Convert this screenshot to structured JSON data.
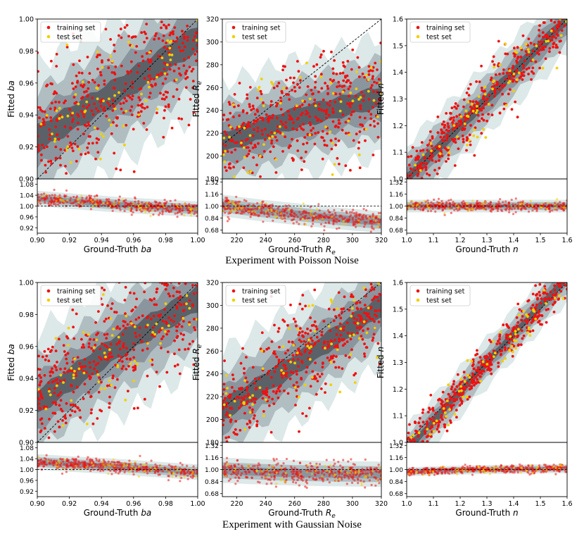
{
  "colors": {
    "training": "#ee1111",
    "test": "#f2cf00",
    "band_outer": "#dde8e8",
    "band_mid": "#b0bec2",
    "band_inner": "#8b959e",
    "band_core": "#5c6168",
    "diagonal": "#000000"
  },
  "legend": {
    "training_label": "training set",
    "test_label": "test set"
  },
  "experiments": [
    {
      "caption": "Experiment with Poisson Noise",
      "noise": "poisson"
    },
    {
      "caption": "Experiment with Gaussian Noise",
      "noise": "gaussian"
    }
  ],
  "chart_data": [
    {
      "id": "poisson-ba",
      "type": "scatter",
      "experiment": "Experiment with Poisson Noise",
      "xlabel": "Ground-Truth ba",
      "ylabel": "Fitted ba",
      "xlim": [
        0.9,
        1.0
      ],
      "ylim": [
        0.9,
        1.0
      ],
      "ratio_ylim": [
        0.9,
        1.1
      ],
      "xticks": [
        "0.90",
        "0.92",
        "0.94",
        "0.96",
        "0.98",
        "1.00"
      ],
      "yticks": [
        "0.90",
        "0.92",
        "0.94",
        "0.96",
        "0.98",
        "1.00"
      ],
      "ratio_yticks": [
        "0.92",
        "0.96",
        "1.00",
        "1.04",
        "1.08"
      ],
      "series": [
        {
          "name": "training set"
        },
        {
          "name": "test set"
        }
      ],
      "trend": [
        [
          0.9,
          0.925
        ],
        [
          0.95,
          0.955
        ],
        [
          1.0,
          0.988
        ]
      ],
      "scatter_sd": 0.018,
      "ratio_sd": 0.012
    },
    {
      "id": "poisson-re",
      "type": "scatter",
      "experiment": "Experiment with Poisson Noise",
      "xlabel": "Ground-Truth Re",
      "ylabel": "Fitted Re",
      "xlim": [
        210,
        320
      ],
      "ylim": [
        180,
        320
      ],
      "ratio_ylim": [
        0.64,
        1.36
      ],
      "xticks": [
        "220",
        "240",
        "260",
        "280",
        "300",
        "320"
      ],
      "yticks": [
        "180",
        "200",
        "220",
        "240",
        "260",
        "280",
        "300",
        "320"
      ],
      "ratio_yticks": [
        "0.68",
        "0.84",
        "1.00",
        "1.16",
        "1.32"
      ],
      "series": [
        {
          "name": "training set"
        },
        {
          "name": "test set"
        }
      ],
      "trend": [
        [
          210,
          212
        ],
        [
          260,
          233
        ],
        [
          320,
          252
        ]
      ],
      "scatter_sd": 20,
      "ratio_sd": 0.06
    },
    {
      "id": "poisson-n",
      "type": "scatter",
      "experiment": "Experiment with Poisson Noise",
      "xlabel": "Ground-Truth n",
      "ylabel": "Fitted n",
      "xlim": [
        1.0,
        1.6
      ],
      "ylim": [
        1.0,
        1.6
      ],
      "ratio_ylim": [
        0.64,
        1.36
      ],
      "xticks": [
        "1.0",
        "1.1",
        "1.2",
        "1.3",
        "1.4",
        "1.5",
        "1.6"
      ],
      "yticks": [
        "1.0",
        "1.1",
        "1.2",
        "1.3",
        "1.4",
        "1.5",
        "1.6"
      ],
      "ratio_yticks": [
        "0.68",
        "0.84",
        "1.00",
        "1.16",
        "1.32"
      ],
      "series": [
        {
          "name": "training set"
        },
        {
          "name": "test set"
        }
      ],
      "trend": [
        [
          1.0,
          1.0
        ],
        [
          1.3,
          1.3
        ],
        [
          1.6,
          1.6
        ]
      ],
      "scatter_sd": 0.05,
      "ratio_sd": 0.035
    },
    {
      "id": "gaussian-ba",
      "type": "scatter",
      "experiment": "Experiment with Gaussian Noise",
      "xlabel": "Ground-Truth ba",
      "ylabel": "Fitted ba",
      "xlim": [
        0.9,
        1.0
      ],
      "ylim": [
        0.9,
        1.0
      ],
      "ratio_ylim": [
        0.9,
        1.1
      ],
      "xticks": [
        "0.90",
        "0.92",
        "0.94",
        "0.96",
        "0.98",
        "1.00"
      ],
      "yticks": [
        "0.90",
        "0.92",
        "0.94",
        "0.96",
        "0.98",
        "1.00"
      ],
      "ratio_yticks": [
        "0.92",
        "0.96",
        "1.00",
        "1.04",
        "1.08"
      ],
      "series": [
        {
          "name": "training set"
        },
        {
          "name": "test set"
        }
      ],
      "trend": [
        [
          0.9,
          0.925
        ],
        [
          0.95,
          0.96
        ],
        [
          1.0,
          0.99
        ]
      ],
      "scatter_sd": 0.017,
      "ratio_sd": 0.012
    },
    {
      "id": "gaussian-re",
      "type": "scatter",
      "experiment": "Experiment with Gaussian Noise",
      "xlabel": "Ground-Truth Re",
      "ylabel": "Fitted Re",
      "xlim": [
        210,
        320
      ],
      "ylim": [
        180,
        320
      ],
      "ratio_ylim": [
        0.64,
        1.36
      ],
      "xticks": [
        "220",
        "240",
        "260",
        "280",
        "300",
        "320"
      ],
      "yticks": [
        "180",
        "200",
        "220",
        "240",
        "260",
        "280",
        "300",
        "320"
      ],
      "ratio_yticks": [
        "0.68",
        "0.84",
        "1.00",
        "1.16",
        "1.32"
      ],
      "series": [
        {
          "name": "training set"
        },
        {
          "name": "test set"
        }
      ],
      "trend": [
        [
          210,
          208
        ],
        [
          260,
          248
        ],
        [
          320,
          300
        ]
      ],
      "scatter_sd": 20,
      "ratio_sd": 0.07
    },
    {
      "id": "gaussian-n",
      "type": "scatter",
      "experiment": "Experiment with Gaussian Noise",
      "xlabel": "Ground-Truth n",
      "ylabel": "Fitted n",
      "xlim": [
        1.0,
        1.6
      ],
      "ylim": [
        1.0,
        1.6
      ],
      "ratio_ylim": [
        0.64,
        1.36
      ],
      "xticks": [
        "1.0",
        "1.1",
        "1.2",
        "1.3",
        "1.4",
        "1.5",
        "1.6"
      ],
      "yticks": [
        "1.0",
        "1.1",
        "1.2",
        "1.3",
        "1.4",
        "1.5",
        "1.6"
      ],
      "ratio_yticks": [
        "0.68",
        "0.84",
        "1.00",
        "1.16",
        "1.32"
      ],
      "series": [
        {
          "name": "training set"
        },
        {
          "name": "test set"
        }
      ],
      "trend": [
        [
          1.0,
          0.97
        ],
        [
          1.3,
          1.3
        ],
        [
          1.6,
          1.62
        ]
      ],
      "scatter_sd": 0.035,
      "ratio_sd": 0.025
    }
  ]
}
